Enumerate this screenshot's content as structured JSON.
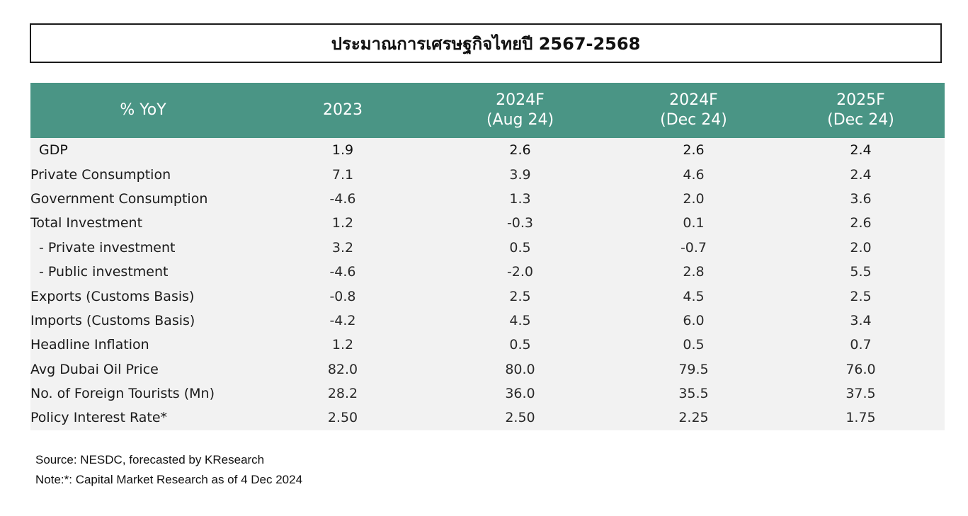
{
  "title": "ประมาณการเศรษฐกิจไทยปี 2567-2568",
  "table": {
    "headers": [
      {
        "lines": [
          "% YoY"
        ]
      },
      {
        "lines": [
          "2023"
        ]
      },
      {
        "lines": [
          "2024F",
          "(Aug 24)"
        ]
      },
      {
        "lines": [
          "2024F",
          "(Dec 24)"
        ]
      },
      {
        "lines": [
          "2025F",
          "(Dec 24)"
        ]
      }
    ],
    "rows": [
      {
        "label": "GDP",
        "values": [
          "1.9",
          "2.6",
          "2.6",
          "2.4"
        ]
      },
      {
        "label": "Private Consumption",
        "values": [
          "7.1",
          "3.9",
          "4.6",
          "2.4"
        ]
      },
      {
        "label": "Government Consumption",
        "values": [
          "-4.6",
          "1.3",
          "2.0",
          "3.6"
        ]
      },
      {
        "label": "Total Investment",
        "values": [
          "1.2",
          "-0.3",
          "0.1",
          "2.6"
        ]
      },
      {
        "label": " - Private investment",
        "values": [
          "3.2",
          "0.5",
          "-0.7",
          "2.0"
        ]
      },
      {
        "label": " - Public investment",
        "values": [
          "-4.6",
          "-2.0",
          "2.8",
          "5.5"
        ]
      },
      {
        "label": "Exports (Customs Basis)",
        "values": [
          "-0.8",
          "2.5",
          "4.5",
          "2.5"
        ]
      },
      {
        "label": "Imports (Customs Basis)",
        "values": [
          "-4.2",
          "4.5",
          "6.0",
          "3.4"
        ]
      },
      {
        "label": "Headline Inflation",
        "values": [
          "1.2",
          "0.5",
          "0.5",
          "0.7"
        ]
      },
      {
        "label": "Avg Dubai Oil Price",
        "values": [
          "82.0",
          "80.0",
          "79.5",
          "76.0"
        ]
      },
      {
        "label": "No. of Foreign Tourists (Mn)",
        "values": [
          "28.2",
          "36.0",
          "35.5",
          "37.5"
        ]
      },
      {
        "label": "Policy Interest Rate*",
        "values": [
          "2.50",
          "2.50",
          "2.25",
          "1.75"
        ]
      }
    ]
  },
  "notes": {
    "source": "Source: NESDC, forecasted by KResearch",
    "note": "Note:*: Capital Market Research as of 4 Dec 2024"
  },
  "colors": {
    "header_bg": "#4a9585",
    "body_bg": "#f2f2f2"
  }
}
